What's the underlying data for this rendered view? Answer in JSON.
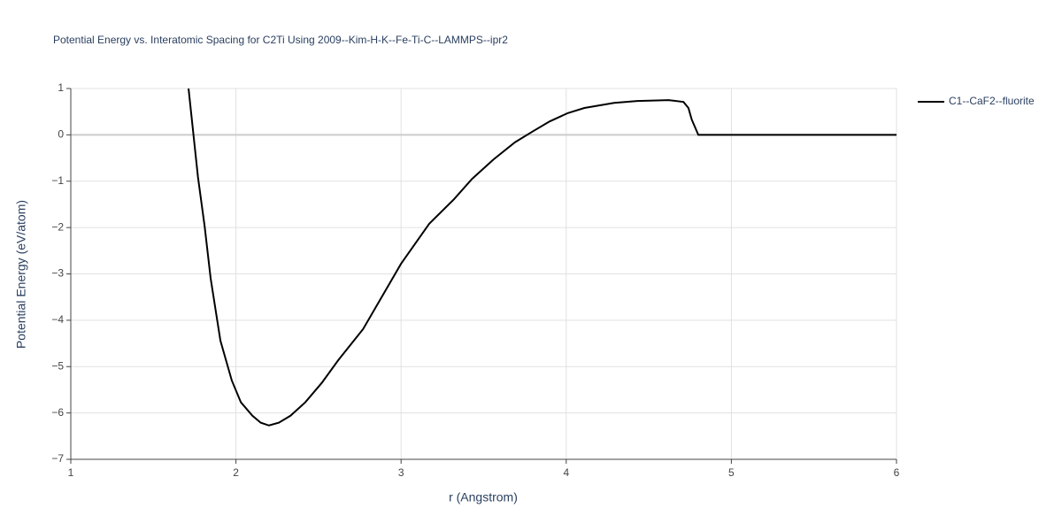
{
  "chart_data": {
    "type": "line",
    "title": "Potential Energy vs. Interatomic Spacing for C2Ti Using 2009--Kim-H-K--Fe-Ti-C--LAMMPS--ipr2",
    "x_label": "r (Angstrom)",
    "y_label": "Potential Energy (eV/atom)",
    "x": [
      1.713,
      1.77,
      1.81,
      1.847,
      1.906,
      1.975,
      2.03,
      2.1,
      2.15,
      2.2,
      2.26,
      2.33,
      2.42,
      2.52,
      2.62,
      2.77,
      3.0,
      3.17,
      3.32,
      3.43,
      3.56,
      3.69,
      3.8,
      3.9,
      4.01,
      4.11,
      4.29,
      4.43,
      4.62,
      4.71,
      4.74,
      4.76,
      4.8,
      6.0
    ],
    "series": [
      {
        "name": "C1--CaF2--fluorite",
        "color": "#000000",
        "values": [
          1.0,
          -0.91,
          -1.96,
          -3.1,
          -4.44,
          -5.3,
          -5.77,
          -6.06,
          -6.21,
          -6.27,
          -6.21,
          -6.06,
          -5.77,
          -5.35,
          -4.86,
          -4.19,
          -2.78,
          -1.92,
          -1.39,
          -0.95,
          -0.53,
          -0.16,
          0.08,
          0.29,
          0.47,
          0.58,
          0.69,
          0.73,
          0.75,
          0.71,
          0.58,
          0.33,
          0.0,
          0.0
        ]
      }
    ],
    "xlim": [
      1,
      6
    ],
    "xticks": [
      1,
      2,
      3,
      4,
      5,
      6
    ],
    "ylim": [
      -7,
      1
    ],
    "yticks": [
      {
        "value": -7,
        "label": "−7"
      },
      {
        "value": -6,
        "label": "−6"
      },
      {
        "value": -5,
        "label": "−5"
      },
      {
        "value": -4,
        "label": "−4"
      },
      {
        "value": -3,
        "label": "−3"
      },
      {
        "value": -2,
        "label": "−2"
      },
      {
        "value": -1,
        "label": "−1"
      },
      0,
      1
    ],
    "grid": true,
    "legend": "right"
  }
}
